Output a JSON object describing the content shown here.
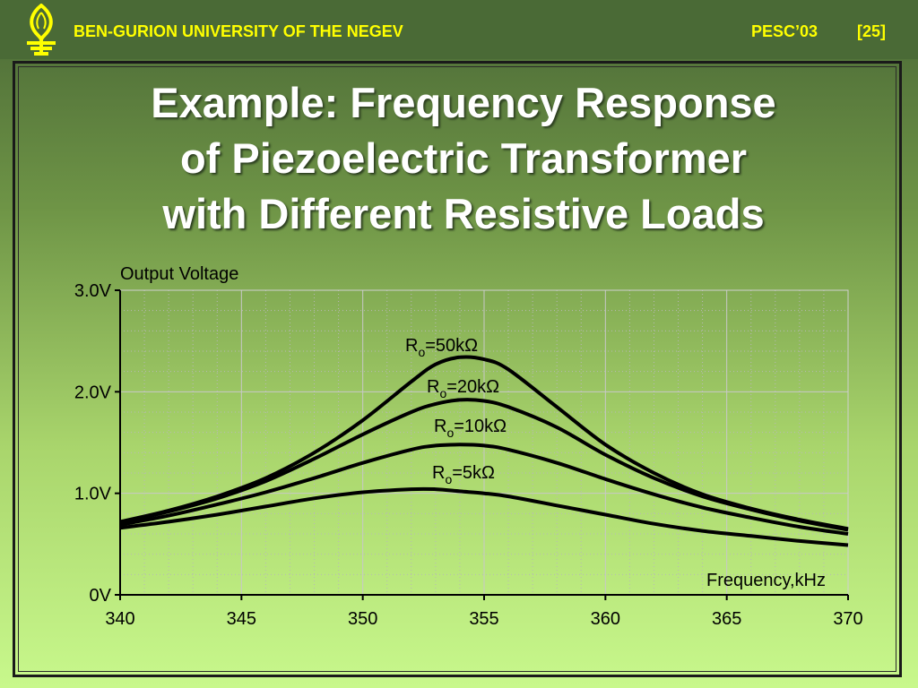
{
  "header": {
    "institution": "BEN-GURION UNIVERSITY OF THE NEGEV",
    "conference": "PESC’03",
    "slide_number": "[25]"
  },
  "title_lines": [
    "Example: Frequency Response",
    "of Piezoelectric Transformer",
    "with Different Resistive Loads"
  ],
  "colors": {
    "header_text": "#ffff00",
    "title_text": "#ffffff",
    "curve": "#000000"
  },
  "chart_data": {
    "type": "line",
    "title": "",
    "ylabel": "Output Voltage",
    "xlabel": "Frequency,kHz",
    "xlim": [
      340,
      370
    ],
    "ylim": [
      0,
      3
    ],
    "x_ticks": [
      "340",
      "345",
      "350",
      "355",
      "360",
      "365",
      "370"
    ],
    "y_ticks": [
      "0V",
      "1.0V",
      "2.0V",
      "3.0V"
    ],
    "grid": true,
    "x": [
      340,
      342,
      344,
      346,
      348,
      350,
      352,
      353,
      354,
      355,
      356,
      358,
      360,
      362,
      364,
      366,
      368,
      370
    ],
    "series": [
      {
        "name": "R",
        "subscript": "o",
        "load": "=50kΩ",
        "values": [
          0.72,
          0.83,
          0.97,
          1.15,
          1.4,
          1.72,
          2.1,
          2.27,
          2.34,
          2.32,
          2.22,
          1.85,
          1.48,
          1.2,
          0.99,
          0.85,
          0.74,
          0.65
        ]
      },
      {
        "name": "R",
        "subscript": "o",
        "load": "=20kΩ",
        "values": [
          0.71,
          0.82,
          0.95,
          1.12,
          1.34,
          1.58,
          1.8,
          1.88,
          1.92,
          1.91,
          1.85,
          1.65,
          1.38,
          1.15,
          0.97,
          0.84,
          0.73,
          0.64
        ]
      },
      {
        "name": "R",
        "subscript": "o",
        "load": "=10kΩ",
        "values": [
          0.69,
          0.78,
          0.89,
          1.01,
          1.15,
          1.3,
          1.43,
          1.47,
          1.48,
          1.47,
          1.43,
          1.3,
          1.14,
          0.99,
          0.86,
          0.76,
          0.67,
          0.6
        ]
      },
      {
        "name": "R",
        "subscript": "o",
        "load": "=5kΩ",
        "values": [
          0.66,
          0.72,
          0.79,
          0.87,
          0.95,
          1.01,
          1.04,
          1.04,
          1.02,
          1.0,
          0.97,
          0.88,
          0.79,
          0.7,
          0.63,
          0.58,
          0.53,
          0.49
        ]
      }
    ]
  }
}
